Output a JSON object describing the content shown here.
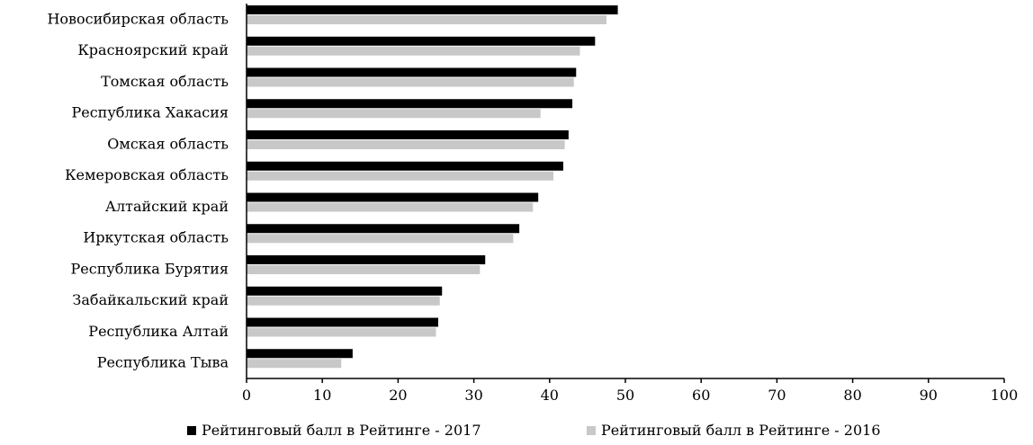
{
  "chart_data": {
    "type": "bar",
    "orientation": "horizontal",
    "categories": [
      "Новосибирская область",
      "Красноярский край",
      "Томская область",
      "Республика Хакасия",
      "Омская область",
      "Кемеровская область",
      "Алтайский край",
      "Иркутская область",
      "Республика Бурятия",
      "Забайкальский край",
      "Республика Алтай",
      "Республика Тыва"
    ],
    "series": [
      {
        "name": "Рейтинговый балл в Рейтинге - 2017",
        "color": "#000000",
        "values": [
          49.0,
          46.0,
          43.5,
          43.0,
          42.5,
          41.8,
          38.5,
          36.0,
          31.5,
          25.8,
          25.3,
          14.0
        ]
      },
      {
        "name": "Рейтинговый балл в Рейтинге - 2016",
        "color": "#c8c8c8",
        "values": [
          47.5,
          44.0,
          43.2,
          38.8,
          42.0,
          40.5,
          37.8,
          35.2,
          30.8,
          25.5,
          25.0,
          12.5
        ]
      }
    ],
    "xlim": [
      0,
      100
    ],
    "xticks": [
      "0",
      "10",
      "20",
      "30",
      "40",
      "50",
      "60",
      "70",
      "80",
      "90",
      "100"
    ],
    "legend_position": "bottom",
    "grid": false
  }
}
